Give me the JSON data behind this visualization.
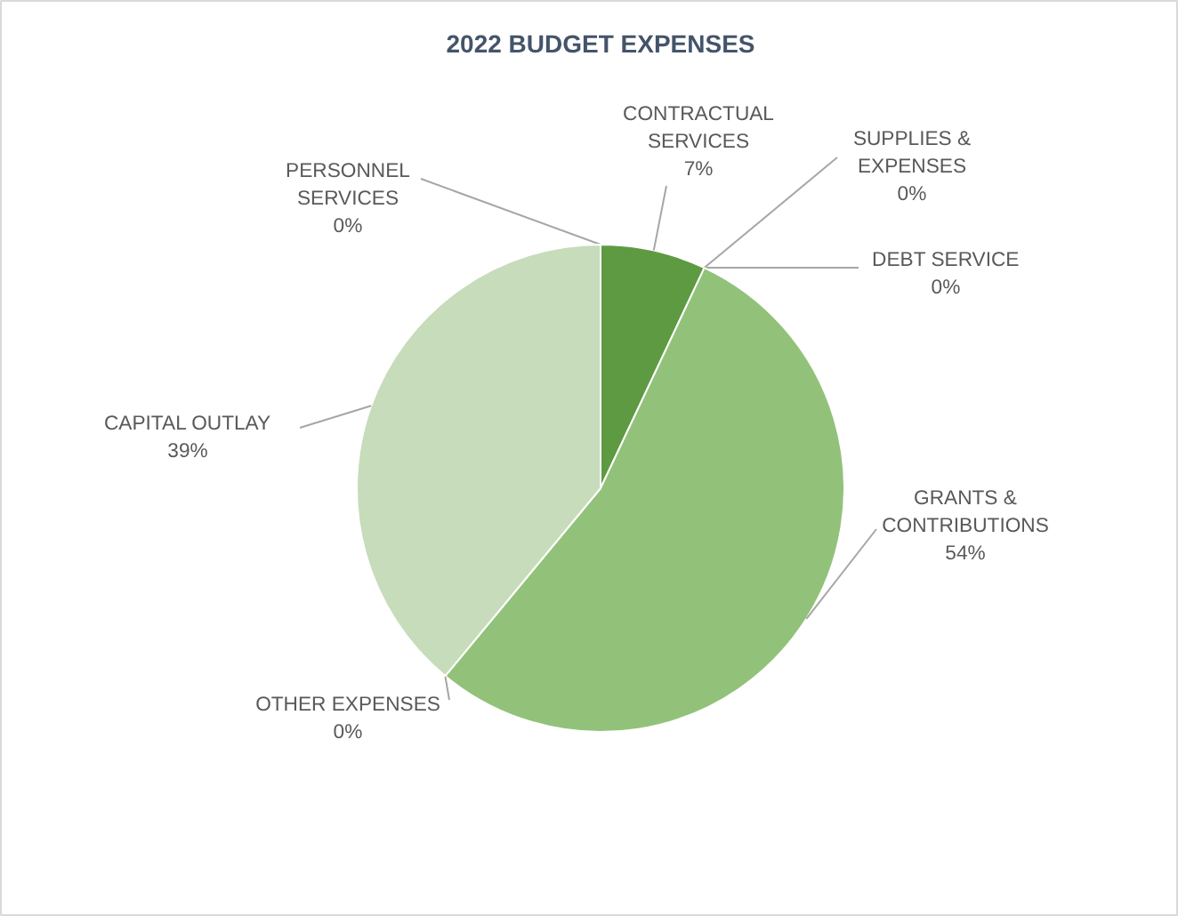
{
  "chart_data": {
    "type": "pie",
    "title": "2022 BUDGET EXPENSES",
    "categories": [
      "PERSONNEL SERVICES",
      "CONTRACTUAL SERVICES",
      "SUPPLIES & EXPENSES",
      "DEBT SERVICE",
      "GRANTS & CONTRIBUTIONS",
      "OTHER EXPENSES",
      "CAPITAL OUTLAY"
    ],
    "values": [
      0,
      7,
      0,
      0,
      54,
      0,
      39
    ],
    "colors": [
      "#4a7a30",
      "#5e9a42",
      "#6fa852",
      "#7db462",
      "#92c27a",
      "#a9cc97",
      "#c6dcba"
    ],
    "value_labels": [
      "0%",
      "7%",
      "0%",
      "0%",
      "54%",
      "0%",
      "39%"
    ]
  }
}
